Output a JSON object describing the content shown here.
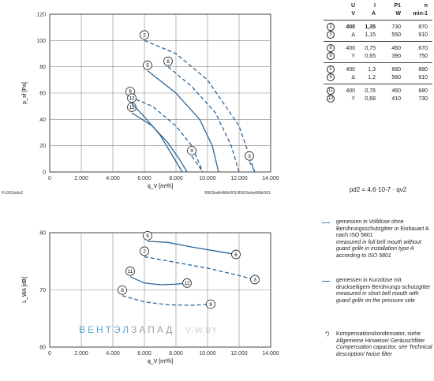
{
  "chart_data": [
    {
      "type": "line",
      "ylabel": "p_sf [Pa]",
      "xlabel": "q_V [m³/h]",
      "xlim": [
        0,
        14000
      ],
      "ylim": [
        0,
        120
      ],
      "xticks": [
        "0",
        "2.000",
        "4.000",
        "6.000",
        "8.000",
        "10.000",
        "12.000",
        "14.000"
      ],
      "yticks": [
        "0",
        "20",
        "40",
        "60",
        "80",
        "100",
        "120"
      ],
      "grid": true,
      "series": [
        {
          "name": "2",
          "style": "dashed",
          "x": [
            6000,
            8000,
            10000,
            12000,
            13000
          ],
          "y": [
            100,
            90,
            70,
            35,
            0
          ]
        },
        {
          "name": "3",
          "style": "dashed",
          "x": [
            12650,
            13000
          ],
          "y": [
            8,
            0
          ]
        },
        {
          "name": "5",
          "style": "solid",
          "x": [
            6200,
            8000,
            9500,
            10300,
            10700
          ],
          "y": [
            77,
            60,
            40,
            20,
            0
          ]
        },
        {
          "name": "6",
          "style": "dashed",
          "x": [
            7500,
            9000,
            10500,
            11500,
            12000
          ],
          "y": [
            80,
            65,
            45,
            20,
            0
          ]
        },
        {
          "name": "8",
          "style": "dashed",
          "x": [
            5100,
            6500,
            8000,
            9000,
            9700
          ],
          "y": [
            57,
            50,
            35,
            20,
            0
          ]
        },
        {
          "name": "9",
          "style": "dashed",
          "x": [
            9000,
            9700
          ],
          "y": [
            12,
            0
          ]
        },
        {
          "name": "11",
          "style": "solid",
          "x": [
            5200,
            6500,
            7500,
            8200,
            8700
          ],
          "y": [
            45,
            35,
            22,
            10,
            0
          ]
        },
        {
          "name": "12",
          "style": "solid",
          "x": [
            5200,
            6000,
            7000,
            7800,
            8400
          ],
          "y": [
            52,
            42,
            28,
            12,
            0
          ]
        }
      ],
      "labels": [
        "2",
        "3",
        "5",
        "6",
        "8",
        "9",
        "11",
        "12"
      ],
      "corner_left": "FL063sds2",
      "corner_right": "fl063sdk4l6ik001/fl063sdq4l6ik001"
    },
    {
      "type": "line",
      "ylabel": "L_WA [dB]",
      "xlabel": "q_V [m³/h]",
      "xlim": [
        0,
        14000
      ],
      "ylim": [
        60,
        80
      ],
      "xticks": [
        "0",
        "2.000",
        "4.000",
        "6.000",
        "8.000",
        "10.000",
        "12.000",
        "14.000"
      ],
      "yticks": [
        "60",
        "70",
        "80"
      ],
      "grid": true,
      "series": [
        {
          "name": "5",
          "style": "solid",
          "x": [
            6200,
            7500,
            9000,
            10500,
            11800
          ],
          "y": [
            78.5,
            78.3,
            77.5,
            76.8,
            76.2
          ]
        },
        {
          "name": "6",
          "style": "solid",
          "x": [
            11800
          ],
          "y": [
            76.2
          ]
        },
        {
          "name": "2",
          "style": "dashed",
          "x": [
            6000,
            8000,
            10000,
            12000,
            13000
          ],
          "y": [
            75.8,
            74.8,
            73.8,
            72.5,
            71.8
          ]
        },
        {
          "name": "3",
          "style": "dashed",
          "x": [
            13000
          ],
          "y": [
            71.8
          ]
        },
        {
          "name": "11",
          "style": "solid",
          "x": [
            5100,
            6000,
            7000,
            8000,
            8700
          ],
          "y": [
            72.3,
            71.2,
            70.9,
            71.0,
            71.2
          ]
        },
        {
          "name": "12",
          "style": "solid",
          "x": [
            8700
          ],
          "y": [
            71.2
          ]
        },
        {
          "name": "8",
          "style": "dashed",
          "x": [
            4600,
            6000,
            7500,
            9000,
            10200
          ],
          "y": [
            69.0,
            67.9,
            67.4,
            67.3,
            67.5
          ]
        },
        {
          "name": "9",
          "style": "dashed",
          "x": [
            10200
          ],
          "y": [
            67.5
          ]
        }
      ]
    }
  ],
  "table": {
    "headers_sym": [
      "U",
      "I",
      "P1",
      "n"
    ],
    "headers_unit": [
      "V",
      "A",
      "W",
      "min-1"
    ],
    "groups": [
      {
        "rows": [
          {
            "id": "2",
            "u": "400",
            "i": "1,35",
            "p": "730",
            "n": "870",
            "bold": true
          },
          {
            "id": "3",
            "u": "Δ",
            "i": "1,15",
            "p": "550",
            "n": "910",
            "bold": false
          }
        ]
      },
      {
        "rows": [
          {
            "id": "8",
            "u": "400",
            "i": "0,75",
            "p": "460",
            "n": "670",
            "bold": false
          },
          {
            "id": "9",
            "u": "Y",
            "i": "0,65",
            "p": "390",
            "n": "750",
            "bold": false
          }
        ]
      },
      {
        "rows": [
          {
            "id": "5",
            "u": "400",
            "i": "1,3",
            "p": "680",
            "n": "880",
            "bold": false
          },
          {
            "id": "6",
            "u": "Δ",
            "i": "1,2",
            "p": "580",
            "n": "910",
            "bold": false
          }
        ]
      },
      {
        "rows": [
          {
            "id": "11",
            "u": "400",
            "i": "0,76",
            "p": "460",
            "n": "680",
            "bold": false
          },
          {
            "id": "12",
            "u": "Y",
            "i": "0,68",
            "p": "410",
            "n": "730",
            "bold": false
          }
        ]
      }
    ]
  },
  "formula": "pd2 = 4,6·10-7 · qv2",
  "legend": {
    "dashed_de": "gemessen in Volldüse ohne Berührungsschutzgitter in Einbauart A nach ISO 5801",
    "dashed_en": "measured in full bell mouth without guard grille in installation type A according to ISO 5801",
    "solid_de": "gemessen in Kurzdüse mit druckseitigem Berührungs-schutzgitter",
    "solid_en": "measured in short bell mouth with guard grille on the pressure side",
    "note_mark": "*)",
    "note_de": "Kompensationskondensator, siehe Allgemeine Hinweise/ Geräuschfilter",
    "note_en": "Compensation capacitor, see Technical description/ Noise filter"
  },
  "watermark": {
    "left": "ВЕНТЭЛ",
    "mid": "ЗАПАД",
    "right": "V-W.BY"
  },
  "colors": {
    "line": "#2c6699",
    "grid": "#888888",
    "watermark_left": "#5aa6d8",
    "watermark_mid": "#9aa5b0"
  }
}
